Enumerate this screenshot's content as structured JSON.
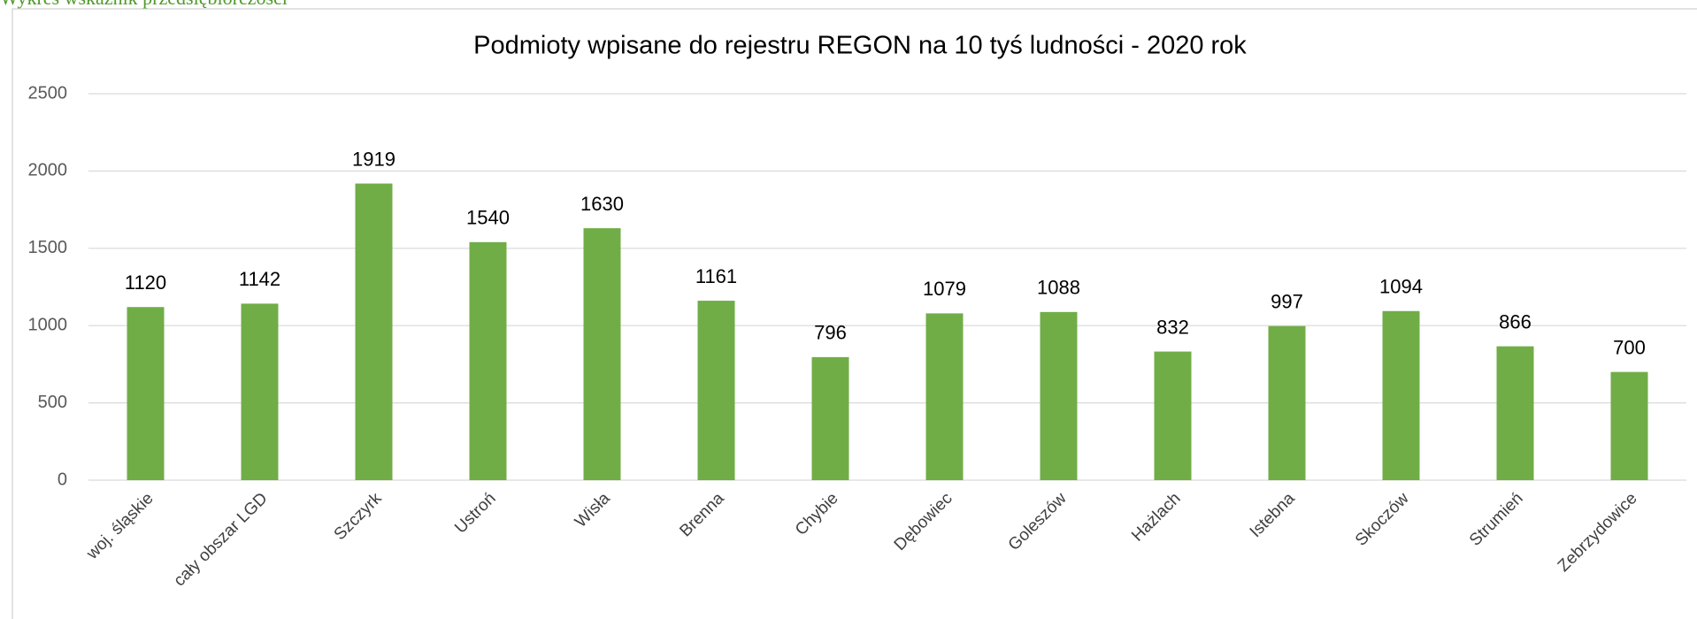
{
  "header": {
    "text": "Wykres wskaźnik przedsiębiorczości"
  },
  "chart_data": {
    "type": "bar",
    "title": "Podmioty wpisane do rejestru REGON na 10 tyś ludności - 2020 rok",
    "categories": [
      "woj. śląskie",
      "cały obszar LGD",
      "Szczyrk",
      "Ustroń",
      "Wisła",
      "Brenna",
      "Chybie",
      "Dębowiec",
      "Goleszów",
      "Hażlach",
      "Istebna",
      "Skoczów",
      "Strumień",
      "Zebrzydowice"
    ],
    "values": [
      1120,
      1142,
      1919,
      1540,
      1630,
      1161,
      796,
      1079,
      1088,
      832,
      997,
      1094,
      866,
      700
    ],
    "color": "#70ad47",
    "ylim": [
      0,
      2500
    ],
    "yticks": [
      0,
      500,
      1000,
      1500,
      2000,
      2500
    ],
    "grid": true
  }
}
